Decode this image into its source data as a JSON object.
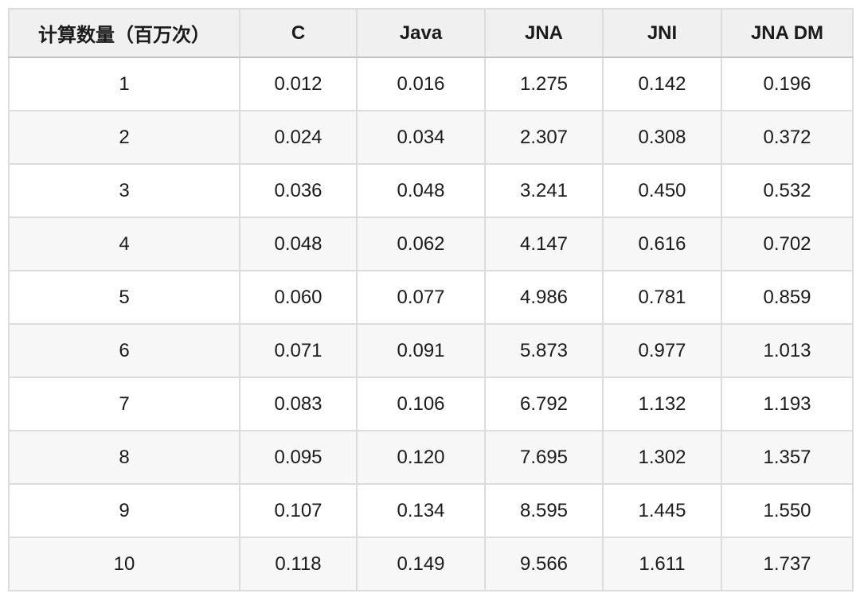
{
  "table": {
    "columns": [
      "计算数量（百万次）",
      "C",
      "Java",
      "JNA",
      "JNI",
      "JNA DM"
    ],
    "rows": [
      [
        "1",
        "0.012",
        "0.016",
        "1.275",
        "0.142",
        "0.196"
      ],
      [
        "2",
        "0.024",
        "0.034",
        "2.307",
        "0.308",
        "0.372"
      ],
      [
        "3",
        "0.036",
        "0.048",
        "3.241",
        "0.450",
        "0.532"
      ],
      [
        "4",
        "0.048",
        "0.062",
        "4.147",
        "0.616",
        "0.702"
      ],
      [
        "5",
        "0.060",
        "0.077",
        "4.986",
        "0.781",
        "0.859"
      ],
      [
        "6",
        "0.071",
        "0.091",
        "5.873",
        "0.977",
        "1.013"
      ],
      [
        "7",
        "0.083",
        "0.106",
        "6.792",
        "1.132",
        "1.193"
      ],
      [
        "8",
        "0.095",
        "0.120",
        "7.695",
        "1.302",
        "1.357"
      ],
      [
        "9",
        "0.107",
        "0.134",
        "8.595",
        "1.445",
        "1.550"
      ],
      [
        "10",
        "0.118",
        "0.149",
        "9.566",
        "1.611",
        "1.737"
      ]
    ]
  },
  "chart_data": {
    "type": "table",
    "title": "",
    "xlabel": "计算数量（百万次）",
    "categories": [
      1,
      2,
      3,
      4,
      5,
      6,
      7,
      8,
      9,
      10
    ],
    "series": [
      {
        "name": "C",
        "values": [
          0.012,
          0.024,
          0.036,
          0.048,
          0.06,
          0.071,
          0.083,
          0.095,
          0.107,
          0.118
        ]
      },
      {
        "name": "Java",
        "values": [
          0.016,
          0.034,
          0.048,
          0.062,
          0.077,
          0.091,
          0.106,
          0.12,
          0.134,
          0.149
        ]
      },
      {
        "name": "JNA",
        "values": [
          1.275,
          2.307,
          3.241,
          4.147,
          4.986,
          5.873,
          6.792,
          7.695,
          8.595,
          9.566
        ]
      },
      {
        "name": "JNI",
        "values": [
          0.142,
          0.308,
          0.45,
          0.616,
          0.781,
          0.977,
          1.132,
          1.302,
          1.445,
          1.611
        ]
      },
      {
        "name": "JNA DM",
        "values": [
          0.196,
          0.372,
          0.532,
          0.702,
          0.859,
          1.013,
          1.193,
          1.357,
          1.55,
          1.737
        ]
      }
    ],
    "layout": {
      "grid": true,
      "zebra_striping": true,
      "header_row": true,
      "text_align": "center"
    }
  },
  "colors": {
    "header_background": "#f0f0f0",
    "alt_row_background": "#f7f7f7",
    "border_outer": "#c9c9c9",
    "border_inner": "#dcdcdc",
    "text": "#1b1b1b"
  }
}
